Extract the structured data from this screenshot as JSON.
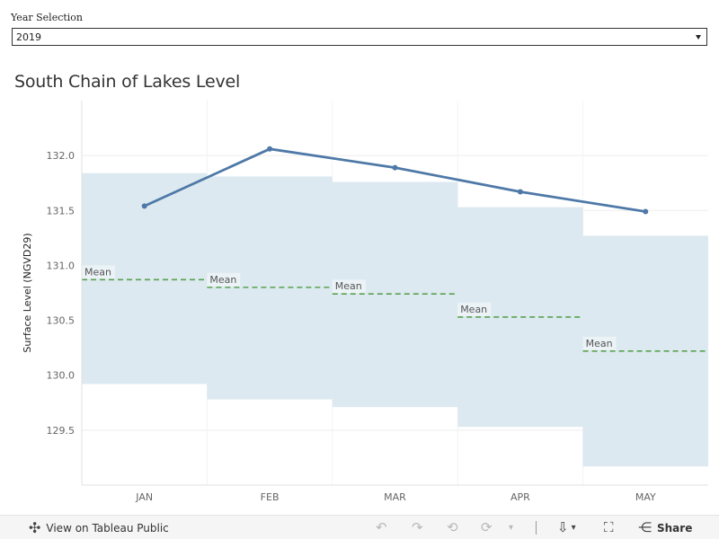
{
  "filter": {
    "label": "Year Selection",
    "value": "2019"
  },
  "chart_data": {
    "type": "line",
    "title": "South Chain of Lakes Level",
    "ylabel": "Surface Level (NGVD29)",
    "xlabel": "",
    "ylim": [
      129.0,
      132.5
    ],
    "yticks": [
      "129.5",
      "130.0",
      "130.5",
      "131.0",
      "131.5",
      "132.0"
    ],
    "categories": [
      "JAN",
      "FEB",
      "MAR",
      "APR",
      "MAY"
    ],
    "series": [
      {
        "values": [
          131.54,
          132.06,
          131.89,
          131.67,
          131.49
        ]
      }
    ],
    "range_bands": [
      {
        "low": 129.92,
        "high": 131.84
      },
      {
        "low": 129.78,
        "high": 131.81
      },
      {
        "low": 129.71,
        "high": 131.76
      },
      {
        "low": 129.53,
        "high": 131.53
      },
      {
        "low": 129.17,
        "high": 131.27
      }
    ],
    "mean": {
      "label": "Mean",
      "values": [
        130.87,
        130.8,
        130.74,
        130.53,
        130.22
      ]
    },
    "grid": true,
    "colors": {
      "line": "#4e79a7",
      "band": "#dce9f0",
      "mean": "#59a14f"
    }
  },
  "toolbar": {
    "view_label": "View on Tableau Public",
    "share_label": "Share"
  }
}
